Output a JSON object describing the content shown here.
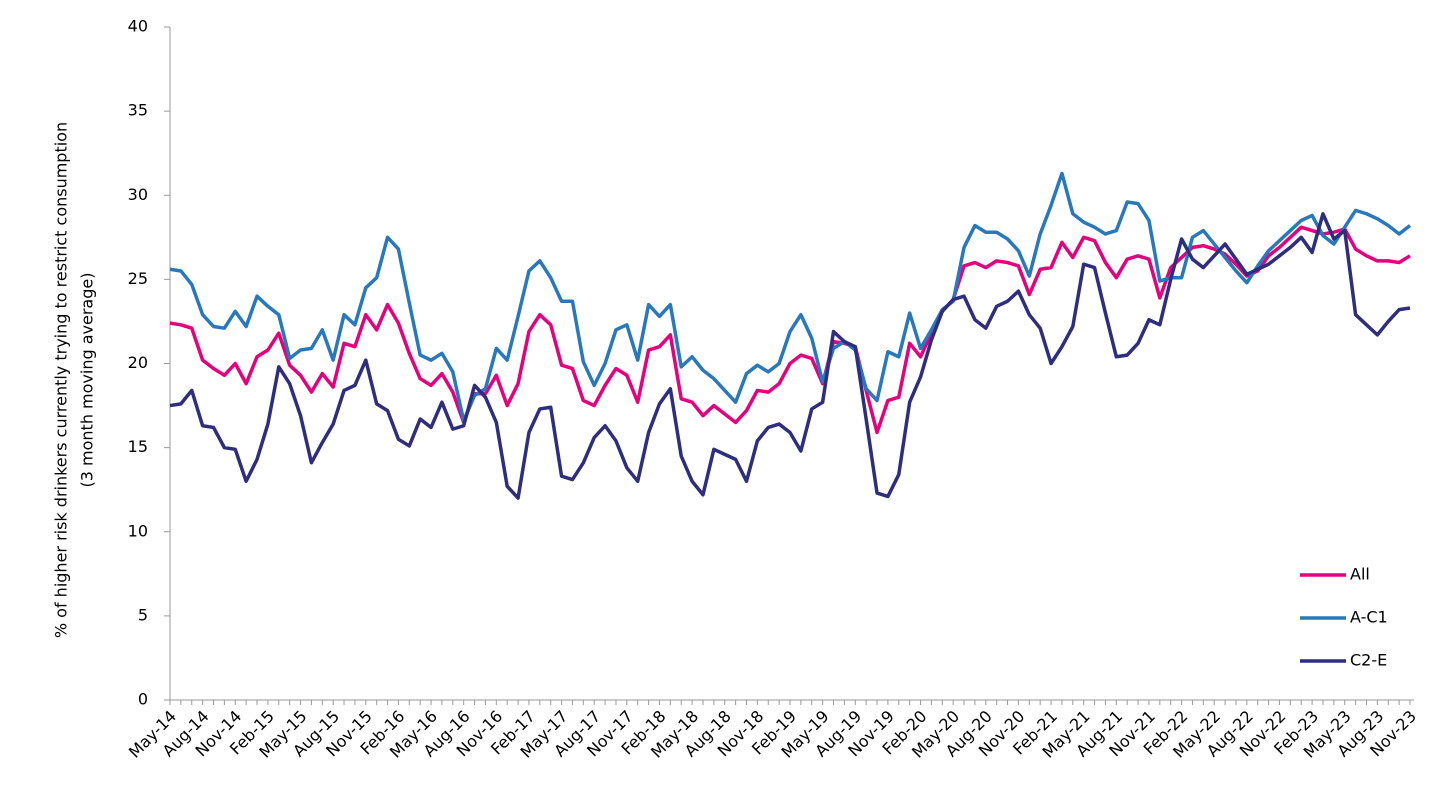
{
  "chart_data": {
    "type": "line",
    "y_label": [
      "% of higher risk drinkers currently trying to restrict consumption",
      "(3 month moving average)"
    ],
    "categories": [
      "May-14",
      null,
      null,
      "Aug-14",
      null,
      null,
      "Nov-14",
      null,
      null,
      "Feb-15",
      null,
      null,
      "May-15",
      null,
      null,
      "Aug-15",
      null,
      null,
      "Nov-15",
      null,
      null,
      "Feb-16",
      null,
      null,
      "May-16",
      null,
      null,
      "Aug-16",
      null,
      null,
      "Nov-16",
      null,
      null,
      "Feb-17",
      null,
      null,
      "May-17",
      null,
      null,
      "Aug-17",
      null,
      null,
      "Nov-17",
      null,
      null,
      "Feb-18",
      null,
      null,
      "May-18",
      null,
      null,
      "Aug-18",
      null,
      null,
      "Nov-18",
      null,
      null,
      "Feb-19",
      null,
      null,
      "May-19",
      null,
      null,
      "Aug-19",
      null,
      null,
      "Nov-19",
      null,
      null,
      "Feb-20",
      null,
      null,
      "May-20",
      null,
      null,
      "Aug-20",
      null,
      null,
      "Nov-20",
      null,
      null,
      "Feb-21",
      null,
      null,
      "May-21",
      null,
      null,
      "Aug-21",
      null,
      null,
      "Nov-21",
      null,
      null,
      "Feb-22",
      null,
      null,
      "May-22",
      null,
      null,
      "Aug-22",
      null,
      null,
      "Nov-22",
      null,
      null,
      "Feb-23",
      null,
      null,
      "May-23",
      null,
      null,
      "Aug-23",
      null,
      null,
      "Nov-23"
    ],
    "series": [
      {
        "name": "All",
        "color": "#e6007e",
        "values": [
          22.4,
          22.3,
          22.1,
          20.2,
          19.7,
          19.3,
          20.0,
          18.8,
          20.4,
          20.8,
          21.8,
          19.9,
          19.3,
          18.3,
          19.4,
          18.6,
          21.2,
          21.0,
          22.9,
          22.0,
          23.5,
          22.4,
          20.6,
          19.1,
          18.7,
          19.4,
          18.3,
          16.5,
          18.2,
          18.2,
          19.3,
          17.5,
          18.8,
          21.9,
          22.9,
          22.3,
          19.9,
          19.7,
          17.8,
          17.5,
          18.7,
          19.7,
          19.3,
          17.7,
          20.8,
          21.0,
          21.7,
          17.9,
          17.7,
          16.9,
          17.5,
          17.0,
          16.5,
          17.2,
          18.4,
          18.3,
          18.8,
          20.0,
          20.5,
          20.3,
          18.8,
          21.3,
          21.2,
          21.0,
          18.4,
          15.9,
          17.8,
          18.0,
          21.2,
          20.4,
          21.8,
          23.1,
          23.8,
          25.8,
          26.0,
          25.7,
          26.1,
          26.0,
          25.8,
          24.1,
          25.6,
          25.7,
          27.2,
          26.3,
          27.5,
          27.3,
          26.0,
          25.1,
          26.2,
          26.4,
          26.2,
          23.9,
          25.7,
          26.3,
          26.9,
          27.0,
          26.8,
          26.5,
          25.9,
          25.2,
          25.5,
          26.4,
          26.9,
          27.5,
          28.1,
          27.9,
          27.7,
          27.8,
          28.0,
          26.8,
          26.4,
          26.1,
          26.1,
          26.0,
          26.4
        ]
      },
      {
        "name": "A-C1",
        "color": "#2878be",
        "values": [
          25.6,
          25.5,
          24.7,
          22.9,
          22.2,
          22.1,
          23.1,
          22.2,
          24.0,
          23.4,
          22.9,
          20.3,
          20.8,
          20.9,
          22.0,
          20.2,
          22.9,
          22.3,
          24.5,
          25.1,
          27.5,
          26.8,
          23.6,
          20.5,
          20.2,
          20.6,
          19.5,
          16.6,
          18.1,
          18.5,
          20.9,
          20.2,
          22.8,
          25.5,
          26.1,
          25.1,
          23.7,
          23.7,
          20.1,
          18.7,
          20.0,
          22.0,
          22.3,
          20.2,
          23.5,
          22.8,
          23.5,
          19.8,
          20.4,
          19.6,
          19.1,
          18.4,
          17.7,
          19.4,
          19.9,
          19.5,
          20.0,
          21.9,
          22.9,
          21.5,
          18.9,
          20.9,
          21.3,
          20.8,
          18.5,
          17.8,
          20.7,
          20.4,
          23.0,
          20.9,
          22.0,
          23.2,
          23.7,
          26.9,
          28.2,
          27.8,
          27.8,
          27.4,
          26.7,
          25.2,
          27.7,
          29.4,
          31.3,
          28.9,
          28.4,
          28.1,
          27.7,
          27.9,
          29.6,
          29.5,
          28.5,
          24.9,
          25.1,
          25.1,
          27.5,
          27.9,
          27.1,
          26.3,
          25.5,
          24.8,
          25.8,
          26.7,
          27.3,
          27.9,
          28.5,
          28.8,
          27.6,
          27.1,
          28.1,
          29.1,
          28.9,
          28.6,
          28.2,
          27.7,
          28.2
        ]
      },
      {
        "name": "C2-E",
        "color": "#2e2d7f",
        "values": [
          17.5,
          17.6,
          18.4,
          16.3,
          16.2,
          15.0,
          14.9,
          13.0,
          14.3,
          16.4,
          19.8,
          18.8,
          16.9,
          14.1,
          15.3,
          16.4,
          18.4,
          18.7,
          20.2,
          17.6,
          17.2,
          15.5,
          15.1,
          16.7,
          16.2,
          17.7,
          16.1,
          16.3,
          18.7,
          18.0,
          16.5,
          12.7,
          12.0,
          15.9,
          17.3,
          17.4,
          13.3,
          13.1,
          14.1,
          15.6,
          16.3,
          15.4,
          13.8,
          13.0,
          15.9,
          17.6,
          18.5,
          14.5,
          13.0,
          12.2,
          14.9,
          14.6,
          14.3,
          13.0,
          15.4,
          16.2,
          16.4,
          15.9,
          14.8,
          17.3,
          17.7,
          21.9,
          21.3,
          21.0,
          16.7,
          12.3,
          12.1,
          13.4,
          17.7,
          19.2,
          21.4,
          23.1,
          23.8,
          24.0,
          22.6,
          22.1,
          23.4,
          23.7,
          24.3,
          22.9,
          22.1,
          20.0,
          21.0,
          22.2,
          25.9,
          25.7,
          23.0,
          20.4,
          20.5,
          21.2,
          22.6,
          22.3,
          25.0,
          27.4,
          26.2,
          25.7,
          26.4,
          27.1,
          26.2,
          25.3,
          25.6,
          25.9,
          26.4,
          26.9,
          27.5,
          26.6,
          28.9,
          27.4,
          27.9,
          22.9,
          22.3,
          21.7,
          22.5,
          23.2,
          23.3
        ]
      }
    ],
    "ylim": [
      0,
      40
    ],
    "yticks": [
      0,
      5,
      10,
      15,
      20,
      25,
      30,
      35,
      40
    ],
    "grid": false,
    "legend": "lower right"
  }
}
